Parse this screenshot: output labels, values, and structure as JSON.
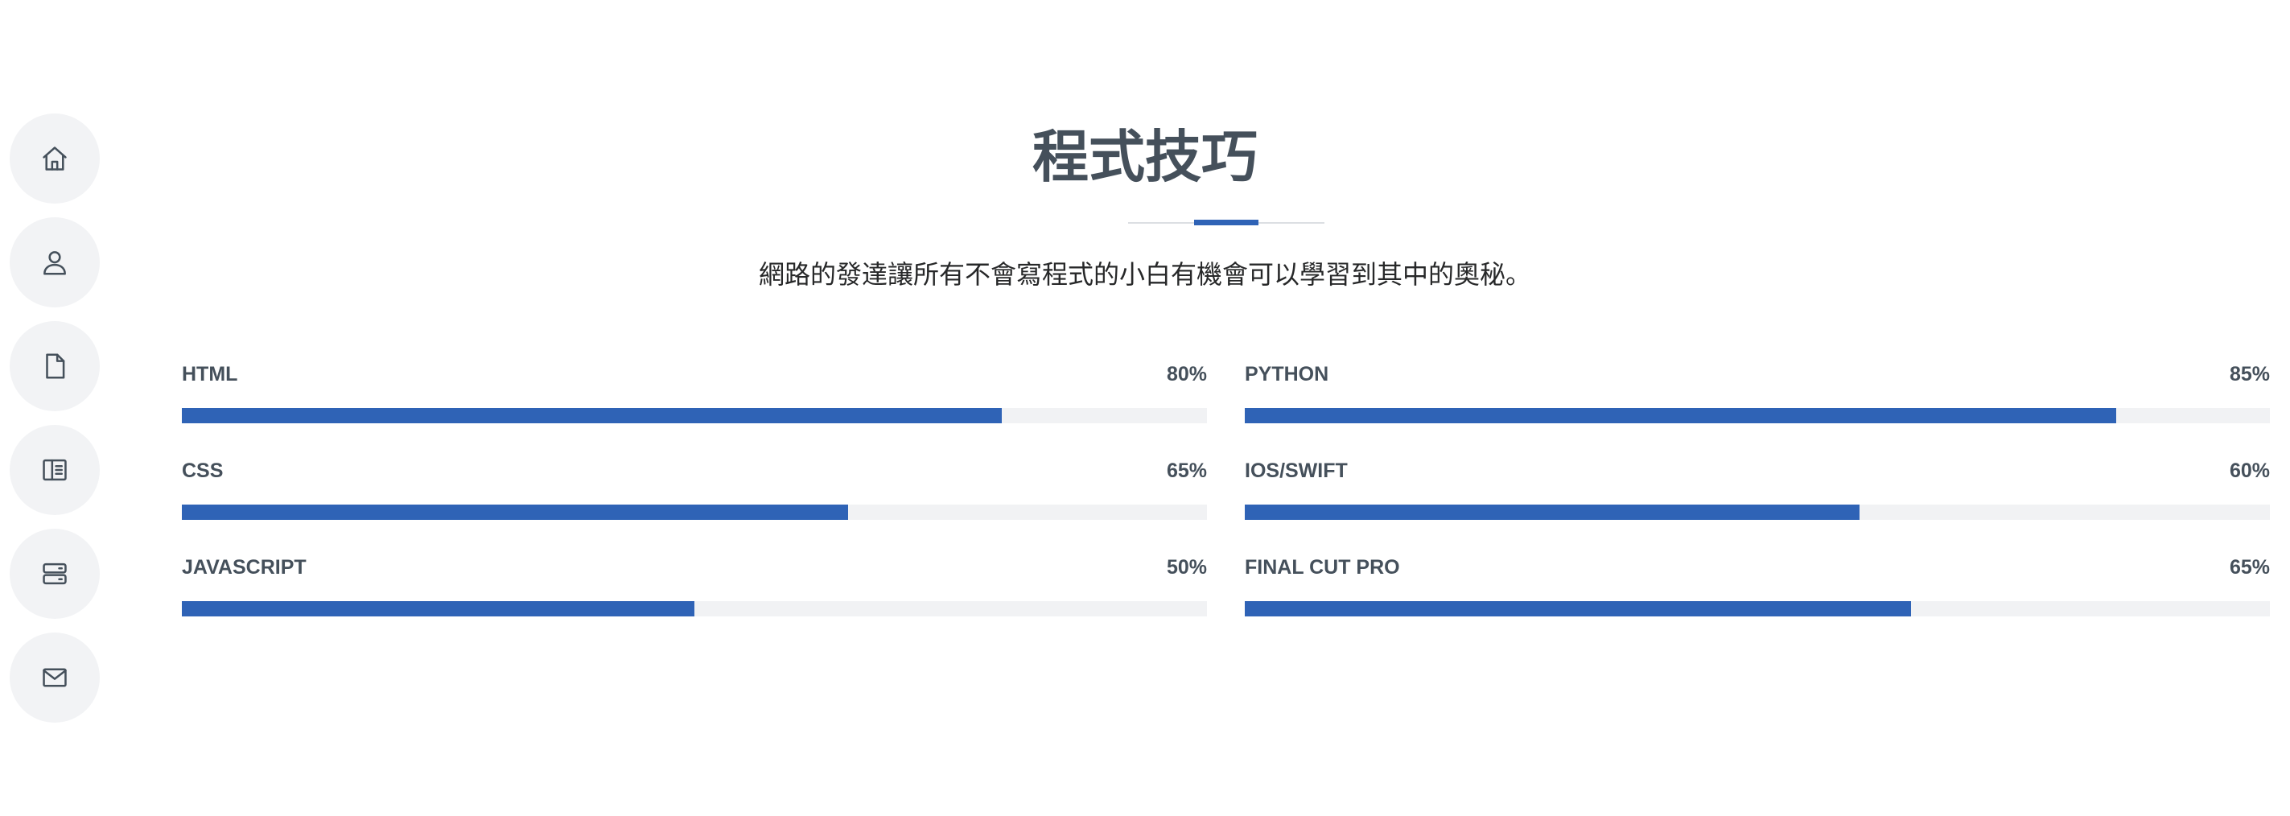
{
  "nav": {
    "items": [
      {
        "icon": "home-icon"
      },
      {
        "icon": "person-icon"
      },
      {
        "icon": "file-icon"
      },
      {
        "icon": "book-half-icon"
      },
      {
        "icon": "server-icon"
      },
      {
        "icon": "envelope-icon"
      }
    ]
  },
  "section": {
    "title": "程式技巧",
    "subtitle": "網路的發達讓所有不會寫程式的小白有機會可以學習到其中的奧秘。"
  },
  "skills": [
    {
      "name": "HTML",
      "percent_label": "80%",
      "value": 80
    },
    {
      "name": "PYTHON",
      "percent_label": "85%",
      "value": 85
    },
    {
      "name": "CSS",
      "percent_label": "65%",
      "value": 65
    },
    {
      "name": "IOS/SWIFT",
      "percent_label": "60%",
      "value": 60
    },
    {
      "name": "JAVASCRIPT",
      "percent_label": "50%",
      "value": 50
    },
    {
      "name": "FINAL CUT PRO",
      "percent_label": "65%",
      "value": 65
    }
  ],
  "colors": {
    "accent": "#2f63b6",
    "track": "#f1f2f4",
    "text": "#45505b",
    "nav_bg": "#f2f3f5"
  }
}
